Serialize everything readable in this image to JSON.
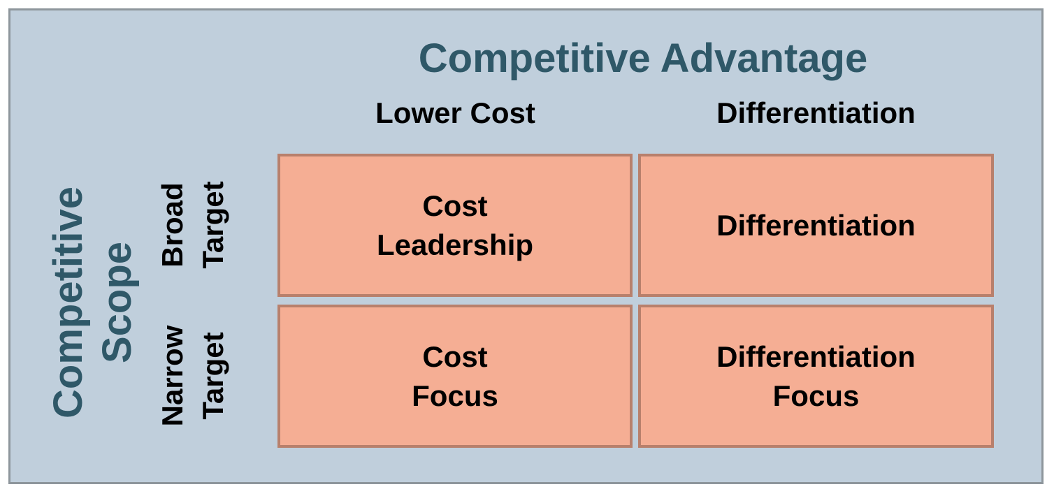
{
  "title": "Competitive Advantage",
  "columns": [
    "Lower Cost",
    "Differentiation"
  ],
  "scope_label": [
    "Competitive",
    "Scope"
  ],
  "rows": [
    [
      "Broad",
      "Target"
    ],
    [
      "Narrow",
      "Target"
    ]
  ],
  "cells": [
    [
      [
        "Cost",
        "Leadership"
      ],
      [
        "Differentiation"
      ]
    ],
    [
      [
        "Cost",
        "Focus"
      ],
      [
        "Differentiation",
        "Focus"
      ]
    ]
  ],
  "colors": {
    "background": "#c0cfdc",
    "frame_border": "#8e969c",
    "title": "#2f5868",
    "cell_fill": "#f5ae94",
    "cell_border": "#b8806c"
  }
}
